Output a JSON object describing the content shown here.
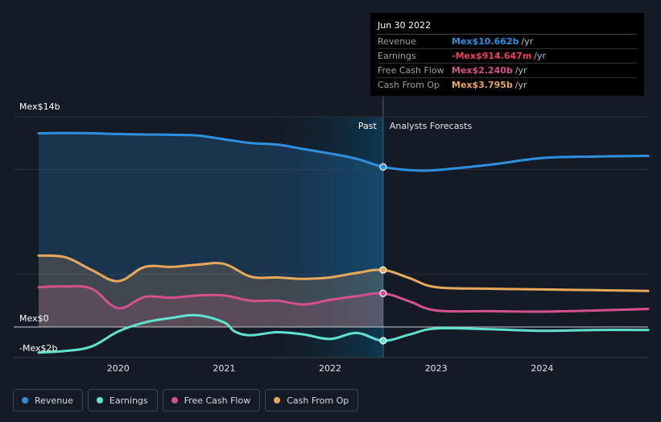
{
  "tooltip": {
    "date": "Jun 30 2022",
    "rows": [
      {
        "label": "Revenue",
        "value": "Mex$10.662b",
        "unit": "/yr",
        "color": "#2e8fe0"
      },
      {
        "label": "Earnings",
        "value": "-Mex$914.647m",
        "unit": "/yr",
        "color": "#e8455a"
      },
      {
        "label": "Free Cash Flow",
        "value": "Mex$2.240b",
        "unit": "/yr",
        "color": "#d5508f"
      },
      {
        "label": "Cash From Op",
        "value": "Mex$3.795b",
        "unit": "/yr",
        "color": "#e8a85a"
      }
    ]
  },
  "legend": [
    {
      "label": "Revenue",
      "color": "#2e8fe0"
    },
    {
      "label": "Earnings",
      "color": "#5fe2cf"
    },
    {
      "label": "Free Cash Flow",
      "color": "#d5508f"
    },
    {
      "label": "Cash From Op",
      "color": "#e8a85a"
    }
  ],
  "chart_data": {
    "type": "line",
    "x_unit": "year",
    "y_unit": "Mex$ billions",
    "ylim": [
      -2,
      14
    ],
    "xlim": [
      2019.25,
      2025.0
    ],
    "y_tick_labels": [
      {
        "label": "Mex$14b",
        "value": 14
      },
      {
        "label": "Mex$0",
        "value": 0
      },
      {
        "label": "-Mex$2b",
        "value": -2
      }
    ],
    "x_tick_labels": [
      "2020",
      "2021",
      "2022",
      "2023",
      "2024"
    ],
    "x_ticks": [
      2020,
      2021,
      2022,
      2023,
      2024
    ],
    "regions": {
      "past_label": "Past",
      "forecast_label": "Analysts Forecasts",
      "divider_x": 2022.5,
      "highlight_start_x": 2021.5
    },
    "highlight_x": 2022.5,
    "grid": true,
    "legend_position": "bottom",
    "series": [
      {
        "name": "Revenue",
        "color": "#2e8fe0",
        "fill": true,
        "x": [
          2019.25,
          2019.5,
          2019.75,
          2020.0,
          2020.25,
          2020.5,
          2020.75,
          2021.0,
          2021.25,
          2021.5,
          2021.75,
          2022.0,
          2022.25,
          2022.5,
          2022.75,
          2023.0,
          2023.5,
          2024.0,
          2024.5,
          2025.0
        ],
        "values": [
          12.9,
          12.92,
          12.9,
          12.85,
          12.82,
          12.8,
          12.75,
          12.5,
          12.25,
          12.15,
          11.85,
          11.55,
          11.2,
          10.662,
          10.45,
          10.45,
          10.8,
          11.25,
          11.35,
          11.4
        ]
      },
      {
        "name": "Earnings",
        "color": "#5fe2cf",
        "fill": false,
        "x": [
          2019.25,
          2019.5,
          2019.75,
          2020.0,
          2020.25,
          2020.5,
          2020.75,
          2021.0,
          2021.1,
          2021.25,
          2021.5,
          2021.75,
          2022.0,
          2022.25,
          2022.5,
          2022.75,
          2023.0,
          2023.5,
          2024.0,
          2024.5,
          2025.0
        ],
        "values": [
          -1.7,
          -1.6,
          -1.3,
          -0.3,
          0.3,
          0.6,
          0.78,
          0.3,
          -0.3,
          -0.55,
          -0.35,
          -0.5,
          -0.8,
          -0.4,
          -0.915,
          -0.5,
          -0.1,
          -0.15,
          -0.25,
          -0.2,
          -0.2
        ]
      },
      {
        "name": "Free Cash Flow",
        "color": "#d5508f",
        "fill": true,
        "x": [
          2019.25,
          2019.5,
          2019.75,
          2020.0,
          2020.25,
          2020.5,
          2020.75,
          2021.0,
          2021.25,
          2021.5,
          2021.75,
          2022.0,
          2022.25,
          2022.5,
          2022.75,
          2023.0,
          2023.5,
          2024.0,
          2024.5,
          2025.0
        ],
        "values": [
          2.65,
          2.7,
          2.55,
          1.25,
          2.0,
          1.95,
          2.1,
          2.1,
          1.75,
          1.75,
          1.5,
          1.8,
          2.05,
          2.24,
          1.7,
          1.1,
          1.05,
          1.02,
          1.1,
          1.2
        ]
      },
      {
        "name": "Cash From Op",
        "color": "#e8a85a",
        "fill": true,
        "x": [
          2019.25,
          2019.5,
          2019.75,
          2020.0,
          2020.25,
          2020.5,
          2020.75,
          2021.0,
          2021.25,
          2021.5,
          2021.75,
          2022.0,
          2022.25,
          2022.5,
          2022.75,
          2023.0,
          2023.5,
          2024.0,
          2024.5,
          2025.0
        ],
        "values": [
          4.75,
          4.65,
          3.8,
          3.05,
          4.0,
          4.0,
          4.15,
          4.2,
          3.35,
          3.3,
          3.2,
          3.3,
          3.6,
          3.795,
          3.25,
          2.65,
          2.55,
          2.5,
          2.45,
          2.4
        ]
      }
    ]
  }
}
